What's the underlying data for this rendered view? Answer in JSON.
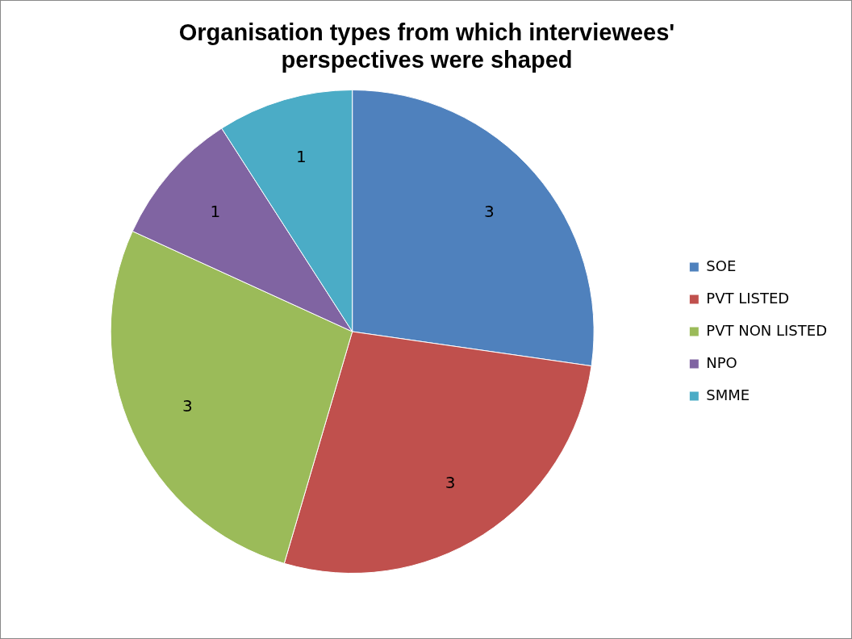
{
  "chart_data": {
    "type": "pie",
    "title": "Organisation types from which interviewees' perspectives were shaped",
    "categories": [
      "SOE",
      "PVT LISTED",
      "PVT NON LISTED",
      "NPO",
      "SMME"
    ],
    "values": [
      3,
      3,
      3,
      1,
      1
    ],
    "colors": [
      "#4f81bd",
      "#c0504d",
      "#9bbb59",
      "#8064a2",
      "#4bacc6"
    ],
    "data_labels": true,
    "legend": "right"
  }
}
